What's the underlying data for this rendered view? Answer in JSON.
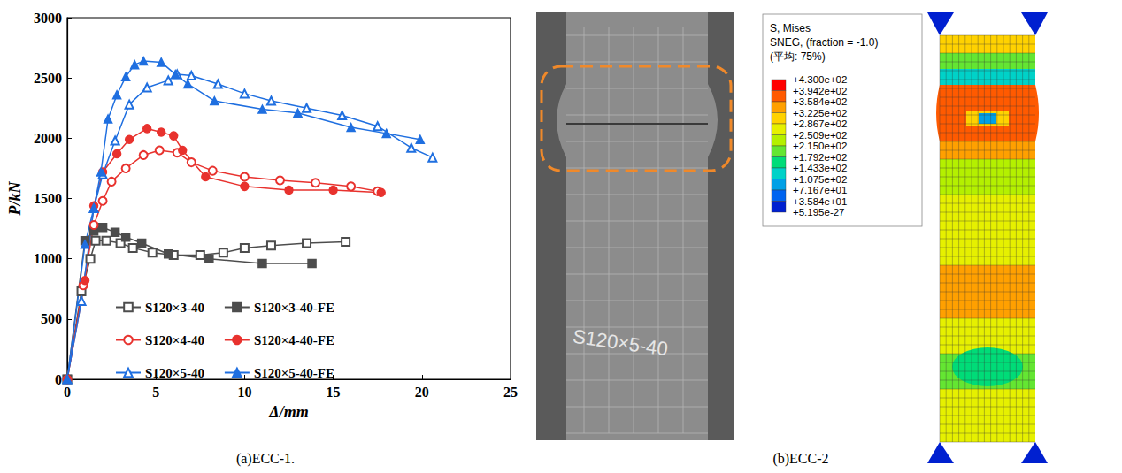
{
  "chart_data": {
    "type": "line",
    "x_label": "Δ/mm",
    "y_label": "P/kN",
    "xlim": [
      0,
      25
    ],
    "xticks": [
      0,
      5,
      10,
      15,
      20,
      25
    ],
    "ylim": [
      0,
      3000
    ],
    "yticks": [
      0,
      500,
      1000,
      1500,
      2000,
      2500,
      3000
    ],
    "legend": "bottom",
    "grid": false,
    "series": [
      {
        "name": "S120×3-40",
        "color": "#4d4d4d",
        "marker": "open-square",
        "line_style": "solid",
        "x": [
          0,
          0.8,
          1.3,
          1.6,
          2.2,
          3,
          3.7,
          4.8,
          6,
          7.5,
          8.8,
          10,
          11.5,
          13.5,
          15.7
        ],
        "values": [
          0,
          730,
          1000,
          1150,
          1150,
          1130,
          1090,
          1050,
          1030,
          1030,
          1050,
          1090,
          1110,
          1130,
          1140
        ]
      },
      {
        "name": "S120×3-40-FE",
        "color": "#4d4d4d",
        "marker": "square",
        "line_style": "solid",
        "x": [
          0,
          1,
          1.5,
          2,
          2.7,
          3.3,
          4.2,
          5.7,
          8,
          11,
          13.8
        ],
        "values": [
          0,
          1150,
          1230,
          1260,
          1220,
          1180,
          1130,
          1040,
          1000,
          960,
          960
        ]
      },
      {
        "name": "S120×4-40",
        "color": "#e8322e",
        "marker": "open-circle",
        "line_style": "solid",
        "x": [
          0,
          0.9,
          1.5,
          2,
          2.5,
          3.3,
          4.3,
          5.2,
          6.2,
          7,
          8.2,
          10,
          12,
          14,
          16,
          17.5
        ],
        "values": [
          0,
          780,
          1280,
          1480,
          1640,
          1750,
          1860,
          1900,
          1880,
          1800,
          1730,
          1680,
          1650,
          1630,
          1600,
          1560
        ]
      },
      {
        "name": "S120×4-40-FE",
        "color": "#e8322e",
        "marker": "circle",
        "line_style": "solid",
        "x": [
          0,
          1,
          1.5,
          2,
          2.8,
          3.5,
          4.5,
          5.3,
          6,
          6.5,
          7.8,
          10,
          12.5,
          15,
          17.7
        ],
        "values": [
          0,
          820,
          1440,
          1720,
          1870,
          1990,
          2080,
          2050,
          2020,
          1900,
          1680,
          1600,
          1570,
          1570,
          1550
        ]
      },
      {
        "name": "S120×5-40",
        "color": "#1f6fe0",
        "marker": "open-triangle",
        "line_style": "solid",
        "x": [
          0,
          0.8,
          1.5,
          2,
          2.7,
          3.5,
          4.5,
          5.7,
          6.2,
          7,
          8.5,
          10,
          11.5,
          13.5,
          15.5,
          17.5,
          19.4,
          20.6
        ],
        "values": [
          0,
          650,
          1420,
          1700,
          1980,
          2280,
          2420,
          2480,
          2530,
          2520,
          2450,
          2370,
          2310,
          2250,
          2190,
          2100,
          1920,
          1840
        ]
      },
      {
        "name": "S120×5-40-FE",
        "color": "#1f6fe0",
        "marker": "triangle",
        "line_style": "solid",
        "x": [
          0,
          1,
          1.5,
          1.9,
          2.3,
          2.8,
          3.3,
          3.8,
          4.3,
          5.3,
          6.1,
          6.8,
          8.3,
          11,
          13,
          16,
          18,
          19.9
        ],
        "values": [
          0,
          1120,
          1420,
          1720,
          2160,
          2360,
          2510,
          2610,
          2640,
          2630,
          2530,
          2450,
          2310,
          2240,
          2210,
          2090,
          2040,
          1990
        ]
      }
    ]
  },
  "captions": [
    "(a)ECC-1.",
    "(b)ECC-2"
  ],
  "photo": {
    "specimen_label": "S120×5-40"
  },
  "contour_legend": {
    "title": [
      "S, Mises",
      "SNEG, (fraction = -1.0)",
      "(平均: 75%)"
    ],
    "levels": [
      "+4.300e+02",
      "+3.942e+02",
      "+3.584e+02",
      "+3.225e+02",
      "+2.867e+02",
      "+2.509e+02",
      "+2.150e+02",
      "+1.792e+02",
      "+1.433e+02",
      "+1.075e+02",
      "+7.167e+01",
      "+3.584e+01",
      "+5.195e-27"
    ]
  }
}
